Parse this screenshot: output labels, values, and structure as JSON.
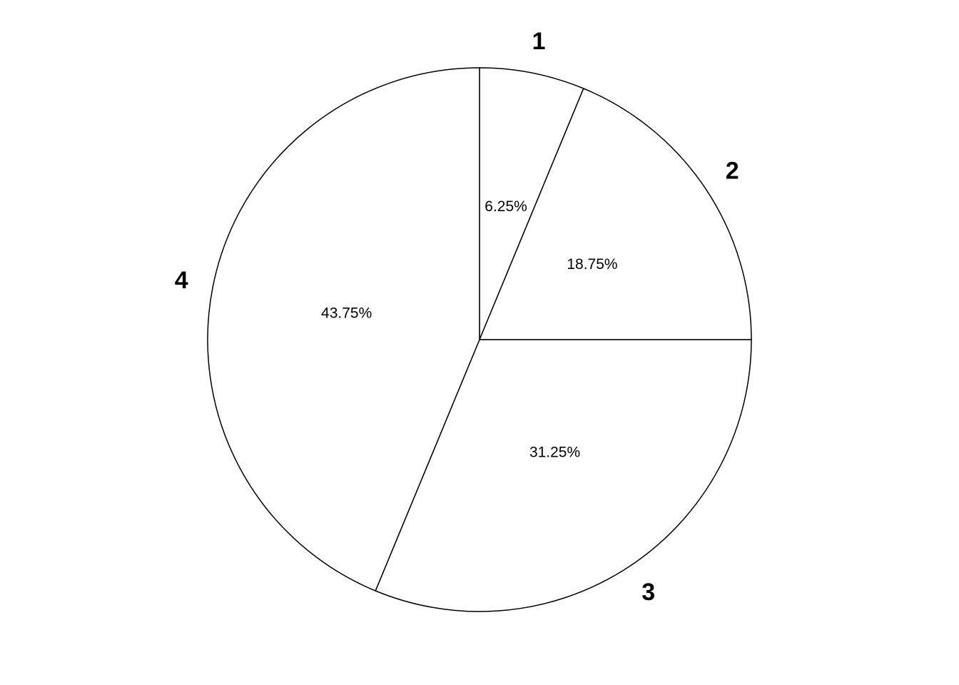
{
  "chart_data": {
    "type": "pie",
    "categories": [
      "1",
      "2",
      "3",
      "4"
    ],
    "values": [
      6.25,
      18.75,
      31.25,
      43.75
    ],
    "data_labels": [
      "6.25%",
      "18.75%",
      "31.25%",
      "43.75%"
    ],
    "start": "top",
    "direction": "clockwise",
    "colors": [
      "#ffffff",
      "#ffffff",
      "#ffffff",
      "#ffffff"
    ],
    "stroke": "#000000",
    "title": "",
    "legend": "none"
  }
}
